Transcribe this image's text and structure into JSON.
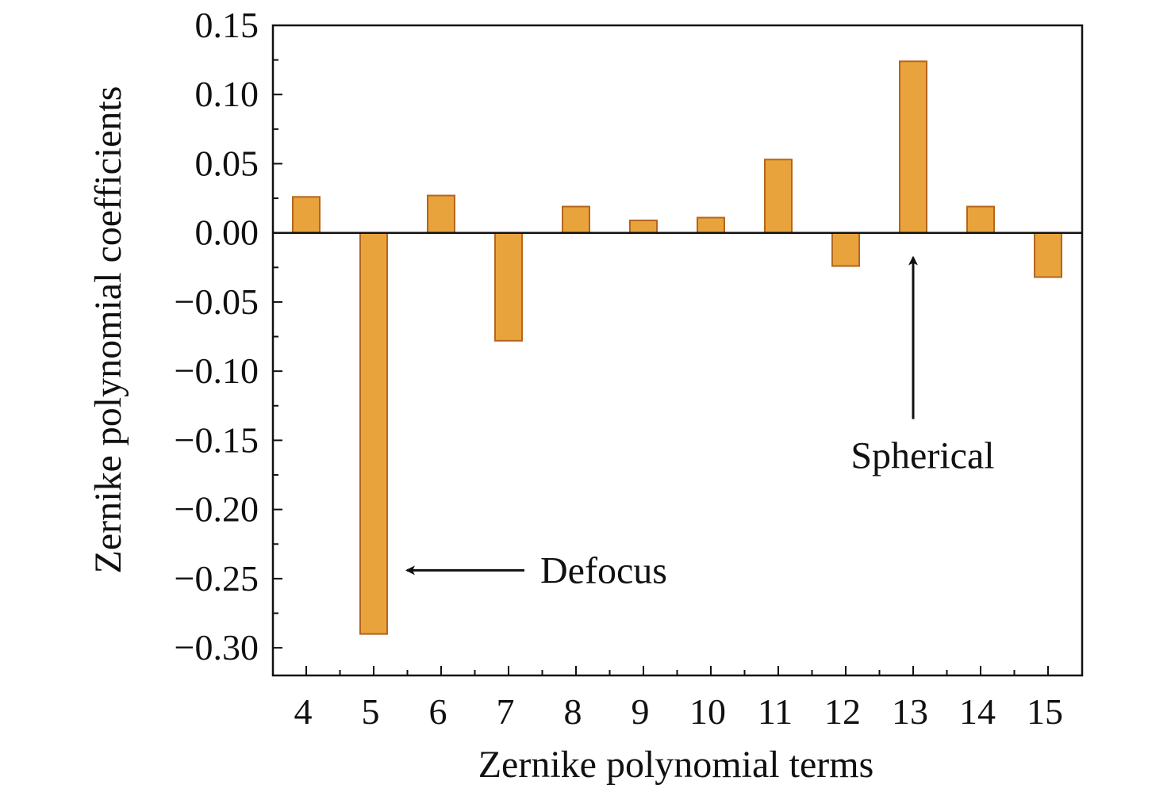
{
  "chart_data": {
    "type": "bar",
    "title": "",
    "xlabel": "Zernike polynomial terms",
    "ylabel": "Zernike polynomial coefficients",
    "categories": [
      "4",
      "5",
      "6",
      "7",
      "8",
      "9",
      "10",
      "11",
      "12",
      "13",
      "14",
      "15"
    ],
    "values": [
      0.026,
      -0.29,
      0.027,
      -0.078,
      0.019,
      0.009,
      0.011,
      0.053,
      -0.024,
      0.124,
      0.019,
      -0.032
    ],
    "ylim": [
      -0.32,
      0.15
    ],
    "yticks": [
      0.15,
      0.1,
      0.05,
      0.0,
      -0.05,
      -0.1,
      -0.15,
      -0.2,
      -0.25,
      -0.3
    ],
    "ytick_labels": [
      "0.15",
      "0.10",
      "0.05",
      "0.00",
      "−0.05",
      "−0.10",
      "−0.15",
      "−0.20",
      "−0.25",
      "−0.30"
    ],
    "grid": false,
    "legend": "none",
    "bar_color": "#e8a33c",
    "bar_edge_color": "#b5651d",
    "annotations": [
      {
        "text": "Defocus",
        "target_category": "5",
        "target_value": -0.244,
        "direction": "left"
      },
      {
        "text": "Spherical",
        "target_category": "13",
        "target_value": -0.012,
        "direction": "up"
      }
    ]
  }
}
